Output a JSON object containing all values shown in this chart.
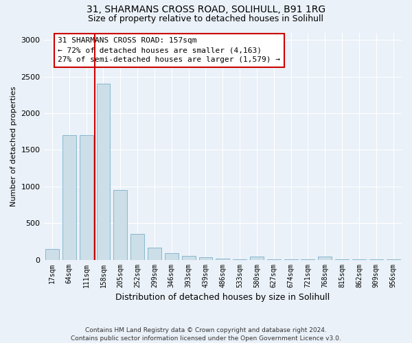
{
  "title": "31, SHARMANS CROSS ROAD, SOLIHULL, B91 1RG",
  "subtitle": "Size of property relative to detached houses in Solihull",
  "xlabel": "Distribution of detached houses by size in Solihull",
  "ylabel": "Number of detached properties",
  "categories": [
    "17sqm",
    "64sqm",
    "111sqm",
    "158sqm",
    "205sqm",
    "252sqm",
    "299sqm",
    "346sqm",
    "393sqm",
    "439sqm",
    "486sqm",
    "533sqm",
    "580sqm",
    "627sqm",
    "674sqm",
    "721sqm",
    "768sqm",
    "815sqm",
    "862sqm",
    "909sqm",
    "956sqm"
  ],
  "values": [
    150,
    1700,
    1700,
    2400,
    950,
    350,
    160,
    90,
    50,
    30,
    10,
    5,
    40,
    5,
    5,
    5,
    40,
    5,
    5,
    5,
    5
  ],
  "bar_color": "#ccdee8",
  "bar_edge_color": "#7aafc8",
  "vline_color": "#cc0000",
  "annotation_text": "31 SHARMANS CROSS ROAD: 157sqm\n← 72% of detached houses are smaller (4,163)\n27% of semi-detached houses are larger (1,579) →",
  "annotation_box_color": "#cc0000",
  "ylim": [
    0,
    3100
  ],
  "yticks": [
    0,
    500,
    1000,
    1500,
    2000,
    2500,
    3000
  ],
  "footer": "Contains HM Land Registry data © Crown copyright and database right 2024.\nContains public sector information licensed under the Open Government Licence v3.0.",
  "bg_color": "#eaf1f8",
  "title_fontsize": 10,
  "subtitle_fontsize": 9,
  "annotation_fontsize": 8
}
